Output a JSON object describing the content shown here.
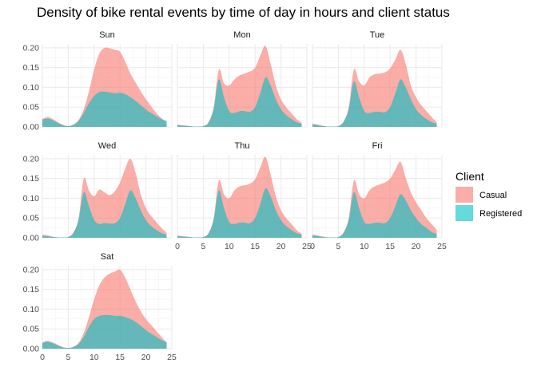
{
  "chart_data": {
    "type": "area",
    "title": "Density of bike rental events by time of day in hours and client status",
    "xlabel": "",
    "ylabel": "",
    "x_ticks": [
      0,
      5,
      10,
      15,
      20,
      25
    ],
    "y_ticks": [
      0.0,
      0.05,
      0.1,
      0.15,
      0.2
    ],
    "xlim": [
      0,
      25
    ],
    "ylim": [
      0,
      0.21
    ],
    "stacked": true,
    "grid": true,
    "legend": {
      "title": "Client",
      "position": "right",
      "entries": [
        {
          "name": "Casual",
          "color": "#F8766D"
        },
        {
          "name": "Registered",
          "color": "#00BFC4"
        }
      ]
    },
    "x": [
      0,
      1,
      2,
      3,
      4,
      5,
      6,
      7,
      8,
      9,
      10,
      11,
      12,
      13,
      14,
      15,
      16,
      17,
      18,
      19,
      20,
      21,
      22,
      23,
      24
    ],
    "panels": [
      {
        "label": "Sun",
        "registered": [
          0.019,
          0.021,
          0.017,
          0.01,
          0.004,
          0.002,
          0.005,
          0.015,
          0.035,
          0.06,
          0.078,
          0.088,
          0.089,
          0.087,
          0.085,
          0.086,
          0.083,
          0.075,
          0.066,
          0.055,
          0.044,
          0.035,
          0.027,
          0.02,
          0.015
        ],
        "total": [
          0.02,
          0.025,
          0.02,
          0.012,
          0.005,
          0.002,
          0.006,
          0.018,
          0.045,
          0.09,
          0.145,
          0.185,
          0.2,
          0.199,
          0.195,
          0.19,
          0.165,
          0.135,
          0.112,
          0.09,
          0.07,
          0.052,
          0.035,
          0.022,
          0.012
        ]
      },
      {
        "label": "Mon",
        "registered": [
          0.004,
          0.003,
          0.002,
          0.001,
          0.001,
          0.002,
          0.01,
          0.045,
          0.12,
          0.075,
          0.04,
          0.035,
          0.04,
          0.04,
          0.038,
          0.05,
          0.085,
          0.125,
          0.105,
          0.07,
          0.045,
          0.03,
          0.02,
          0.012,
          0.008
        ],
        "total": [
          0.006,
          0.004,
          0.003,
          0.001,
          0.001,
          0.002,
          0.012,
          0.05,
          0.145,
          0.11,
          0.105,
          0.12,
          0.13,
          0.135,
          0.14,
          0.15,
          0.18,
          0.205,
          0.16,
          0.105,
          0.07,
          0.05,
          0.035,
          0.02,
          0.01
        ]
      },
      {
        "label": "Tue",
        "registered": [
          0.006,
          0.004,
          0.002,
          0.001,
          0.001,
          0.002,
          0.012,
          0.045,
          0.115,
          0.075,
          0.04,
          0.035,
          0.038,
          0.038,
          0.037,
          0.05,
          0.085,
          0.12,
          0.1,
          0.07,
          0.045,
          0.03,
          0.02,
          0.012,
          0.008
        ],
        "total": [
          0.008,
          0.006,
          0.003,
          0.001,
          0.001,
          0.002,
          0.014,
          0.05,
          0.145,
          0.115,
          0.105,
          0.125,
          0.133,
          0.135,
          0.138,
          0.148,
          0.17,
          0.195,
          0.16,
          0.105,
          0.075,
          0.055,
          0.04,
          0.025,
          0.012
        ]
      },
      {
        "label": "Wed",
        "registered": [
          0.005,
          0.004,
          0.002,
          0.001,
          0.001,
          0.002,
          0.012,
          0.045,
          0.115,
          0.08,
          0.045,
          0.035,
          0.037,
          0.036,
          0.037,
          0.05,
          0.085,
          0.12,
          0.1,
          0.07,
          0.045,
          0.03,
          0.02,
          0.012,
          0.008
        ],
        "total": [
          0.008,
          0.006,
          0.003,
          0.001,
          0.001,
          0.002,
          0.014,
          0.05,
          0.15,
          0.12,
          0.105,
          0.122,
          0.115,
          0.108,
          0.118,
          0.14,
          0.175,
          0.2,
          0.165,
          0.11,
          0.075,
          0.055,
          0.04,
          0.025,
          0.012
        ]
      },
      {
        "label": "Thu",
        "registered": [
          0.004,
          0.003,
          0.002,
          0.001,
          0.001,
          0.002,
          0.01,
          0.045,
          0.12,
          0.075,
          0.04,
          0.035,
          0.038,
          0.038,
          0.037,
          0.05,
          0.085,
          0.125,
          0.105,
          0.07,
          0.045,
          0.03,
          0.02,
          0.012,
          0.008
        ],
        "total": [
          0.006,
          0.004,
          0.003,
          0.001,
          0.001,
          0.002,
          0.012,
          0.05,
          0.145,
          0.11,
          0.1,
          0.12,
          0.13,
          0.133,
          0.137,
          0.148,
          0.178,
          0.205,
          0.16,
          0.105,
          0.07,
          0.05,
          0.035,
          0.02,
          0.01
        ]
      },
      {
        "label": "Fri",
        "registered": [
          0.006,
          0.004,
          0.002,
          0.001,
          0.001,
          0.002,
          0.012,
          0.045,
          0.115,
          0.075,
          0.04,
          0.035,
          0.038,
          0.038,
          0.037,
          0.05,
          0.08,
          0.11,
          0.095,
          0.07,
          0.05,
          0.035,
          0.025,
          0.015,
          0.01
        ],
        "total": [
          0.008,
          0.006,
          0.003,
          0.001,
          0.001,
          0.002,
          0.014,
          0.05,
          0.145,
          0.11,
          0.1,
          0.12,
          0.13,
          0.135,
          0.14,
          0.15,
          0.172,
          0.192,
          0.152,
          0.115,
          0.09,
          0.07,
          0.05,
          0.035,
          0.02
        ]
      },
      {
        "label": "Sat",
        "registered": [
          0.015,
          0.018,
          0.014,
          0.008,
          0.003,
          0.002,
          0.004,
          0.012,
          0.03,
          0.055,
          0.075,
          0.083,
          0.085,
          0.085,
          0.083,
          0.083,
          0.08,
          0.075,
          0.068,
          0.058,
          0.047,
          0.038,
          0.03,
          0.022,
          0.017
        ],
        "total": [
          0.015,
          0.02,
          0.016,
          0.01,
          0.004,
          0.002,
          0.005,
          0.015,
          0.04,
          0.08,
          0.125,
          0.16,
          0.18,
          0.19,
          0.195,
          0.2,
          0.18,
          0.15,
          0.12,
          0.095,
          0.075,
          0.06,
          0.045,
          0.03,
          0.015
        ]
      }
    ]
  }
}
